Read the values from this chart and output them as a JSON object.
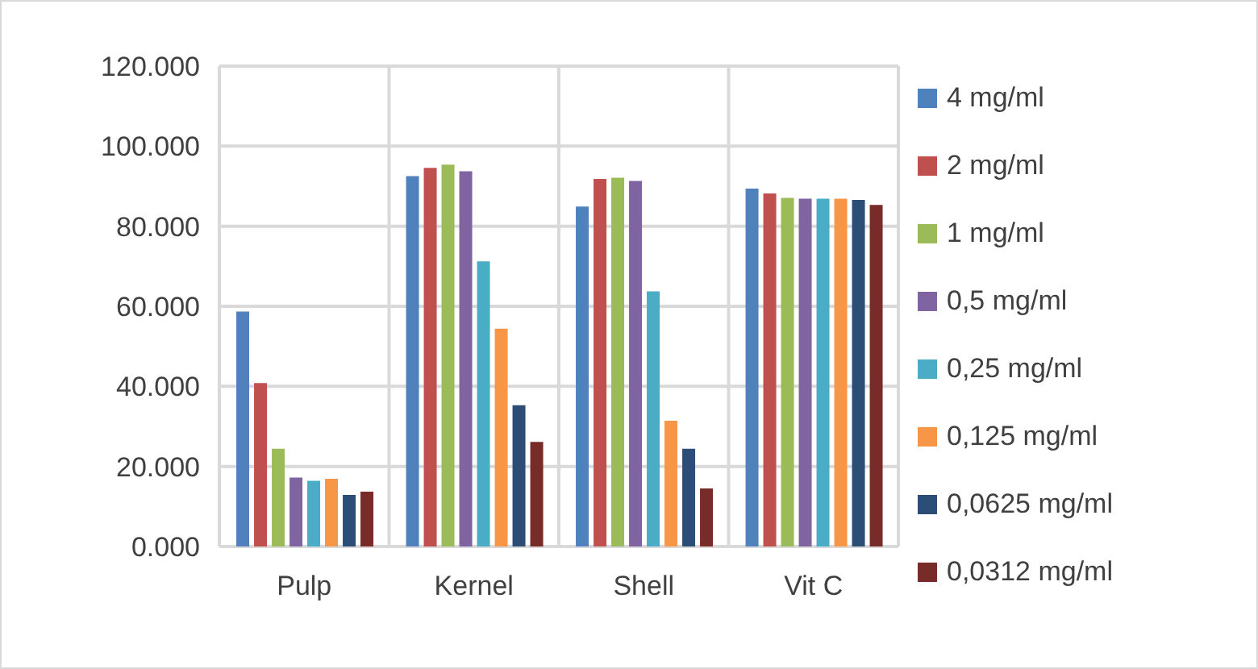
{
  "chart_data": {
    "type": "bar",
    "categories": [
      "Pulp",
      "Kernel",
      "Shell",
      "Vit C"
    ],
    "series": [
      {
        "name": "4 mg/ml",
        "color": "#4f81bd",
        "values": [
          58700,
          92500,
          84900,
          89400
        ]
      },
      {
        "name": "2 mg/ml",
        "color": "#c0504d",
        "values": [
          40800,
          94600,
          91800,
          88200
        ]
      },
      {
        "name": "1 mg/ml",
        "color": "#9bbb59",
        "values": [
          24400,
          95400,
          92100,
          87100
        ]
      },
      {
        "name": "0,5 mg/ml",
        "color": "#8064a2",
        "values": [
          17200,
          93700,
          91300,
          86900
        ]
      },
      {
        "name": "0,25 mg/ml",
        "color": "#4bacc6",
        "values": [
          16400,
          71200,
          63700,
          86900
        ]
      },
      {
        "name": "0,125 mg/ml",
        "color": "#f79646",
        "values": [
          16900,
          54400,
          31400,
          86900
        ]
      },
      {
        "name": "0,0625  mg/ml",
        "color": "#2c4d75",
        "values": [
          12900,
          35300,
          24400,
          86600
        ]
      },
      {
        "name": "0,0312 mg/ml",
        "color": "#772c2a",
        "values": [
          13700,
          26100,
          14500,
          85300
        ]
      }
    ],
    "ylim": [
      0,
      120000
    ],
    "yticks": [
      {
        "value": 0,
        "label": "0.000"
      },
      {
        "value": 20000,
        "label": "20.000"
      },
      {
        "value": 40000,
        "label": "40.000"
      },
      {
        "value": 60000,
        "label": "60.000"
      },
      {
        "value": 80000,
        "label": "80.000"
      },
      {
        "value": 100000,
        "label": "100.000"
      },
      {
        "value": 120000,
        "label": "120.000"
      }
    ],
    "grid": true,
    "legend": "right"
  }
}
